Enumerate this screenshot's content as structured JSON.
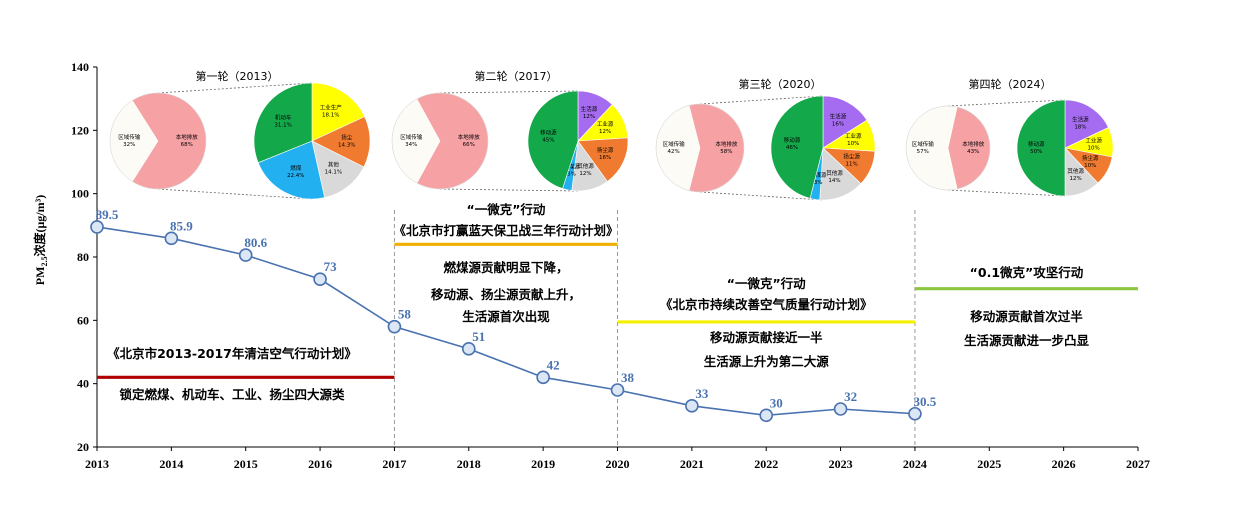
{
  "chart_data": {
    "type": "line",
    "ylabel": "PM2.5浓度(μg/m³)",
    "ylabel_main": "PM",
    "ylabel_sub": "2.5",
    "ylabel_rest": "浓度(μg/m³)",
    "ylim": [
      20,
      140
    ],
    "yticks": [
      20,
      40,
      60,
      80,
      100,
      120,
      140
    ],
    "xlim": [
      2013,
      2027
    ],
    "xticks": [
      2013,
      2014,
      2015,
      2016,
      2017,
      2018,
      2019,
      2020,
      2021,
      2022,
      2023,
      2024,
      2025,
      2026,
      2027
    ],
    "series": [
      {
        "name": "PM2.5",
        "color": "#4a72b0",
        "x": [
          2013,
          2014,
          2015,
          2016,
          2017,
          2018,
          2019,
          2020,
          2021,
          2022,
          2023,
          2024
        ],
        "values": [
          89.5,
          85.9,
          80.6,
          73,
          58,
          51,
          42,
          38,
          33,
          30,
          32,
          30.5
        ],
        "labels": [
          "89.5",
          "85.9",
          "80.6",
          "73",
          "58",
          "51",
          "42",
          "38",
          "33",
          "30",
          "32",
          "30.5"
        ]
      }
    ],
    "dividers": [
      2017,
      2020,
      2024
    ],
    "phases": [
      {
        "title": "《北京市2013-2017年清洁空气行动计划》",
        "subtitle": "",
        "x0": 2013,
        "x1": 2017,
        "line_y": 42,
        "color": "#b00000",
        "lines": [
          "锁定燃煤、机动车、工业、扬尘四大源类"
        ]
      },
      {
        "title": "《北京市打赢蓝天保卫战三年行动计划》",
        "subtitle": "“一微克”行动",
        "x0": 2017,
        "x1": 2020,
        "line_y": 84,
        "color": "#f0b000",
        "lines": [
          "燃煤源贡献明显下降，",
          "移动源、扬尘源贡献上升，",
          "生活源首次出现"
        ]
      },
      {
        "title": "《北京市持续改善空气质量行动计划》",
        "subtitle": "“一微克”行动",
        "x0": 2020,
        "x1": 2024,
        "line_y": 59.5,
        "color": "#f5f000",
        "lines": [
          "移动源贡献接近一半",
          "生活源上升为第二大源"
        ]
      },
      {
        "title": "“0.1微克”攻坚行动",
        "subtitle": "",
        "x0": 2024,
        "x1": 2027,
        "line_y": 70,
        "color": "#8cc63f",
        "lines": [
          "移动源贡献首次过半",
          "生活源贡献进一步凸显"
        ]
      }
    ],
    "pie_rounds": [
      {
        "title": "第一轮（2013）",
        "overview": [
          {
            "label": "区域传输",
            "pct": "32%",
            "value": 32,
            "color": "#fcfbf6"
          },
          {
            "label": "本地排放",
            "pct": "68%",
            "value": 68,
            "color": "#f6a1a4"
          }
        ],
        "local": [
          {
            "label": "工业生产",
            "pct": "18.1%",
            "value": 18.1,
            "color": "#ffff00"
          },
          {
            "label": "扬尘",
            "pct": "14.3%",
            "value": 14.3,
            "color": "#f07b30"
          },
          {
            "label": "其他",
            "pct": "14.1%",
            "value": 14.1,
            "color": "#d9d9d9"
          },
          {
            "label": "燃煤",
            "pct": "22.4%",
            "value": 22.4,
            "color": "#22b0f0"
          },
          {
            "label": "机动车",
            "pct": "31.1%",
            "value": 31.1,
            "color": "#13a84a"
          }
        ]
      },
      {
        "title": "第二轮（2017）",
        "overview": [
          {
            "label": "区域传输",
            "pct": "34%",
            "value": 34,
            "color": "#fcfbf6"
          },
          {
            "label": "本地排放",
            "pct": "66%",
            "value": 66,
            "color": "#f6a1a4"
          }
        ],
        "local": [
          {
            "label": "生活源",
            "pct": "12%",
            "value": 12,
            "color": "#a56bf0"
          },
          {
            "label": "工业源",
            "pct": "12%",
            "value": 12,
            "color": "#ffff00"
          },
          {
            "label": "扬尘源",
            "pct": "16%",
            "value": 16,
            "color": "#f07b30"
          },
          {
            "label": "其他源",
            "pct": "12%",
            "value": 12,
            "color": "#d9d9d9"
          },
          {
            "label": "燃煤源",
            "pct": "3%",
            "value": 3,
            "color": "#22b0f0"
          },
          {
            "label": "移动源",
            "pct": "45%",
            "value": 45,
            "color": "#13a84a"
          }
        ]
      },
      {
        "title": "第三轮（2020）",
        "overview": [
          {
            "label": "区域传输",
            "pct": "42%",
            "value": 42,
            "color": "#fcfbf6"
          },
          {
            "label": "本地排放",
            "pct": "58%",
            "value": 58,
            "color": "#f6a1a4"
          }
        ],
        "local": [
          {
            "label": "生活源",
            "pct": "16%",
            "value": 16,
            "color": "#a56bf0"
          },
          {
            "label": "工业源",
            "pct": "10%",
            "value": 10,
            "color": "#ffff00"
          },
          {
            "label": "扬尘源",
            "pct": "11%",
            "value": 11,
            "color": "#f07b30"
          },
          {
            "label": "其他源",
            "pct": "14%",
            "value": 14,
            "color": "#d9d9d9"
          },
          {
            "label": "燃煤源",
            "pct": "3%",
            "value": 3,
            "color": "#22b0f0"
          },
          {
            "label": "移动源",
            "pct": "46%",
            "value": 46,
            "color": "#13a84a"
          }
        ]
      },
      {
        "title": "第四轮（2024）",
        "overview": [
          {
            "label": "区域传输",
            "pct": "57%",
            "value": 57,
            "color": "#fcfbf6"
          },
          {
            "label": "本地排放",
            "pct": "43%",
            "value": 43,
            "color": "#f6a1a4"
          }
        ],
        "local": [
          {
            "label": "生活源",
            "pct": "18%",
            "value": 18,
            "color": "#a56bf0"
          },
          {
            "label": "工业源",
            "pct": "10%",
            "value": 10,
            "color": "#ffff00"
          },
          {
            "label": "扬尘源",
            "pct": "10%",
            "value": 10,
            "color": "#f07b30"
          },
          {
            "label": "其他源",
            "pct": "12%",
            "value": 12,
            "color": "#d9d9d9"
          },
          {
            "label": "移动源",
            "pct": "50%",
            "value": 50,
            "color": "#13a84a"
          }
        ]
      }
    ]
  }
}
